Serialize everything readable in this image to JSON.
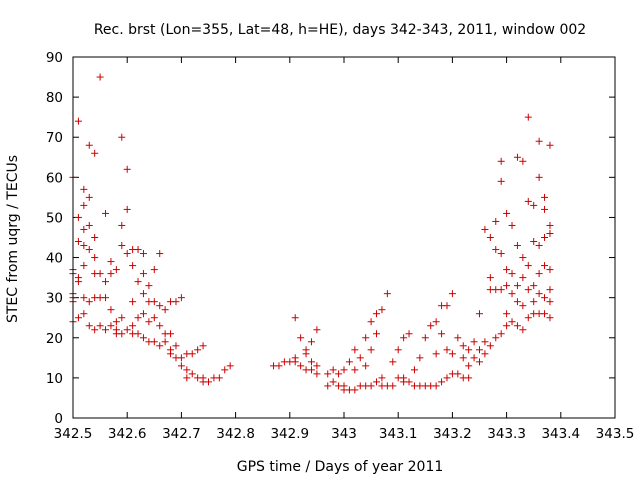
{
  "chart_data": {
    "type": "scatter",
    "title": "Rec. brst (Lon=355, Lat=48, h=HE), days 342-343, 2011, window 002",
    "xlabel": "GPS time / Days of year 2011",
    "ylabel": "STEC from uqrg / TECUs",
    "xlim": [
      342.5,
      343.5
    ],
    "ylim": [
      0,
      90
    ],
    "x_ticks": [
      342.5,
      342.6,
      342.7,
      342.8,
      342.9,
      343,
      343.1,
      343.2,
      343.3,
      343.4,
      343.5
    ],
    "x_tick_labels": [
      "342.5",
      "342.6",
      "342.7",
      "342.8",
      "342.9",
      "343",
      "343.1",
      "343.2",
      "343.3",
      "343.4",
      "343.5"
    ],
    "y_ticks": [
      0,
      10,
      20,
      30,
      40,
      50,
      60,
      70,
      80,
      90
    ],
    "y_tick_labels": [
      "0",
      "10",
      "20",
      "30",
      "40",
      "50",
      "60",
      "70",
      "80",
      "90"
    ],
    "grid": false,
    "marker": "+",
    "color": "#cc0000",
    "points": [
      [
        342.5,
        37
      ],
      [
        342.5,
        36
      ],
      [
        342.5,
        31
      ],
      [
        342.5,
        30
      ],
      [
        342.5,
        29
      ],
      [
        342.5,
        24
      ],
      [
        342.5,
        60
      ],
      [
        342.51,
        74
      ],
      [
        342.51,
        50
      ],
      [
        342.51,
        44
      ],
      [
        342.51,
        35
      ],
      [
        342.51,
        34
      ],
      [
        342.51,
        25
      ],
      [
        342.52,
        57
      ],
      [
        342.52,
        53
      ],
      [
        342.52,
        47
      ],
      [
        342.52,
        43
      ],
      [
        342.52,
        38
      ],
      [
        342.52,
        30
      ],
      [
        342.52,
        26
      ],
      [
        342.53,
        68
      ],
      [
        342.53,
        55
      ],
      [
        342.53,
        48
      ],
      [
        342.53,
        42
      ],
      [
        342.53,
        29
      ],
      [
        342.53,
        23
      ],
      [
        342.54,
        66
      ],
      [
        342.54,
        45
      ],
      [
        342.54,
        40
      ],
      [
        342.54,
        36
      ],
      [
        342.54,
        30
      ],
      [
        342.54,
        22
      ],
      [
        342.55,
        85
      ],
      [
        342.55,
        36
      ],
      [
        342.55,
        30
      ],
      [
        342.55,
        23
      ],
      [
        342.56,
        51
      ],
      [
        342.56,
        34
      ],
      [
        342.56,
        30
      ],
      [
        342.56,
        22
      ],
      [
        342.57,
        39
      ],
      [
        342.57,
        36
      ],
      [
        342.57,
        27
      ],
      [
        342.57,
        23
      ],
      [
        342.58,
        37
      ],
      [
        342.58,
        24
      ],
      [
        342.58,
        22
      ],
      [
        342.58,
        21
      ],
      [
        342.59,
        70
      ],
      [
        342.59,
        48
      ],
      [
        342.59,
        43
      ],
      [
        342.59,
        25
      ],
      [
        342.59,
        21
      ],
      [
        342.6,
        62
      ],
      [
        342.6,
        52
      ],
      [
        342.6,
        41
      ],
      [
        342.6,
        22
      ],
      [
        342.61,
        42
      ],
      [
        342.61,
        38
      ],
      [
        342.61,
        29
      ],
      [
        342.61,
        23
      ],
      [
        342.61,
        21
      ],
      [
        342.62,
        42
      ],
      [
        342.62,
        34
      ],
      [
        342.62,
        25
      ],
      [
        342.62,
        21
      ],
      [
        342.63,
        41
      ],
      [
        342.63,
        36
      ],
      [
        342.63,
        31
      ],
      [
        342.63,
        26
      ],
      [
        342.63,
        20
      ],
      [
        342.64,
        33
      ],
      [
        342.64,
        29
      ],
      [
        342.64,
        24
      ],
      [
        342.64,
        19
      ],
      [
        342.65,
        37
      ],
      [
        342.65,
        29
      ],
      [
        342.65,
        25
      ],
      [
        342.65,
        19
      ],
      [
        342.66,
        41
      ],
      [
        342.66,
        28
      ],
      [
        342.66,
        23
      ],
      [
        342.66,
        18
      ],
      [
        342.67,
        27
      ],
      [
        342.67,
        21
      ],
      [
        342.67,
        19
      ],
      [
        342.68,
        29
      ],
      [
        342.68,
        21
      ],
      [
        342.68,
        17
      ],
      [
        342.68,
        16
      ],
      [
        342.69,
        29
      ],
      [
        342.69,
        18
      ],
      [
        342.69,
        15
      ],
      [
        342.7,
        30
      ],
      [
        342.7,
        15
      ],
      [
        342.7,
        13
      ],
      [
        342.71,
        16
      ],
      [
        342.71,
        12
      ],
      [
        342.71,
        10
      ],
      [
        342.72,
        16
      ],
      [
        342.72,
        11
      ],
      [
        342.73,
        17
      ],
      [
        342.73,
        10
      ],
      [
        342.74,
        18
      ],
      [
        342.74,
        10
      ],
      [
        342.74,
        9
      ],
      [
        342.75,
        9
      ],
      [
        342.76,
        10
      ],
      [
        342.77,
        10
      ],
      [
        342.78,
        12
      ],
      [
        342.79,
        13
      ],
      [
        342.87,
        13
      ],
      [
        342.88,
        13
      ],
      [
        342.89,
        14
      ],
      [
        342.9,
        14
      ],
      [
        342.91,
        25
      ],
      [
        342.91,
        15
      ],
      [
        342.91,
        14
      ],
      [
        342.92,
        20
      ],
      [
        342.92,
        13
      ],
      [
        342.93,
        17
      ],
      [
        342.93,
        16
      ],
      [
        342.93,
        12
      ],
      [
        342.94,
        19
      ],
      [
        342.94,
        14
      ],
      [
        342.94,
        12
      ],
      [
        342.95,
        22
      ],
      [
        342.95,
        13
      ],
      [
        342.95,
        11
      ],
      [
        342.97,
        11
      ],
      [
        342.97,
        8
      ],
      [
        342.98,
        12
      ],
      [
        342.98,
        9
      ],
      [
        342.99,
        11
      ],
      [
        342.99,
        8
      ],
      [
        343.0,
        12
      ],
      [
        343.0,
        8
      ],
      [
        343.0,
        7
      ],
      [
        343.01,
        14
      ],
      [
        343.01,
        7
      ],
      [
        343.02,
        17
      ],
      [
        343.02,
        12
      ],
      [
        343.02,
        7
      ],
      [
        343.03,
        15
      ],
      [
        343.03,
        8
      ],
      [
        343.04,
        20
      ],
      [
        343.04,
        13
      ],
      [
        343.04,
        8
      ],
      [
        343.05,
        24
      ],
      [
        343.05,
        17
      ],
      [
        343.05,
        8
      ],
      [
        343.06,
        26
      ],
      [
        343.06,
        21
      ],
      [
        343.06,
        9
      ],
      [
        343.07,
        27
      ],
      [
        343.07,
        10
      ],
      [
        343.07,
        8
      ],
      [
        343.08,
        31
      ],
      [
        343.08,
        8
      ],
      [
        343.09,
        14
      ],
      [
        343.09,
        8
      ],
      [
        343.1,
        17
      ],
      [
        343.1,
        10
      ],
      [
        343.11,
        20
      ],
      [
        343.11,
        10
      ],
      [
        343.11,
        9
      ],
      [
        343.12,
        21
      ],
      [
        343.12,
        9
      ],
      [
        343.13,
        12
      ],
      [
        343.13,
        8
      ],
      [
        343.14,
        15
      ],
      [
        343.14,
        8
      ],
      [
        343.15,
        20
      ],
      [
        343.15,
        8
      ],
      [
        343.16,
        23
      ],
      [
        343.16,
        8
      ],
      [
        343.17,
        24
      ],
      [
        343.17,
        16
      ],
      [
        343.17,
        8
      ],
      [
        343.18,
        28
      ],
      [
        343.18,
        21
      ],
      [
        343.18,
        9
      ],
      [
        343.19,
        28
      ],
      [
        343.19,
        17
      ],
      [
        343.19,
        10
      ],
      [
        343.2,
        31
      ],
      [
        343.2,
        16
      ],
      [
        343.2,
        11
      ],
      [
        343.21,
        20
      ],
      [
        343.21,
        11
      ],
      [
        343.22,
        18
      ],
      [
        343.22,
        15
      ],
      [
        343.22,
        10
      ],
      [
        343.23,
        17
      ],
      [
        343.23,
        13
      ],
      [
        343.23,
        10
      ],
      [
        343.24,
        19
      ],
      [
        343.24,
        15
      ],
      [
        343.25,
        26
      ],
      [
        343.25,
        17
      ],
      [
        343.25,
        14
      ],
      [
        343.26,
        47
      ],
      [
        343.26,
        19
      ],
      [
        343.26,
        16
      ],
      [
        343.27,
        45
      ],
      [
        343.27,
        35
      ],
      [
        343.27,
        32
      ],
      [
        343.27,
        18
      ],
      [
        343.28,
        49
      ],
      [
        343.28,
        42
      ],
      [
        343.28,
        32
      ],
      [
        343.28,
        20
      ],
      [
        343.29,
        64
      ],
      [
        343.29,
        59
      ],
      [
        343.29,
        41
      ],
      [
        343.29,
        32
      ],
      [
        343.29,
        21
      ],
      [
        343.3,
        51
      ],
      [
        343.3,
        37
      ],
      [
        343.3,
        33
      ],
      [
        343.3,
        26
      ],
      [
        343.3,
        23
      ],
      [
        343.31,
        48
      ],
      [
        343.31,
        36
      ],
      [
        343.31,
        31
      ],
      [
        343.31,
        24
      ],
      [
        343.32,
        65
      ],
      [
        343.32,
        43
      ],
      [
        343.32,
        33
      ],
      [
        343.32,
        29
      ],
      [
        343.32,
        23
      ],
      [
        343.33,
        64
      ],
      [
        343.33,
        40
      ],
      [
        343.33,
        35
      ],
      [
        343.33,
        28
      ],
      [
        343.33,
        22
      ],
      [
        343.34,
        75
      ],
      [
        343.34,
        54
      ],
      [
        343.34,
        38
      ],
      [
        343.34,
        32
      ],
      [
        343.34,
        25
      ],
      [
        343.35,
        53
      ],
      [
        343.35,
        44
      ],
      [
        343.35,
        33
      ],
      [
        343.35,
        29
      ],
      [
        343.35,
        26
      ],
      [
        343.36,
        69
      ],
      [
        343.36,
        60
      ],
      [
        343.36,
        43
      ],
      [
        343.36,
        36
      ],
      [
        343.36,
        31
      ],
      [
        343.36,
        26
      ],
      [
        343.37,
        55
      ],
      [
        343.37,
        52
      ],
      [
        343.37,
        45
      ],
      [
        343.37,
        38
      ],
      [
        343.37,
        30
      ],
      [
        343.37,
        26
      ],
      [
        343.38,
        68
      ],
      [
        343.38,
        48
      ],
      [
        343.38,
        46
      ],
      [
        343.38,
        37
      ],
      [
        343.38,
        32
      ],
      [
        343.38,
        29
      ],
      [
        343.38,
        25
      ]
    ]
  }
}
